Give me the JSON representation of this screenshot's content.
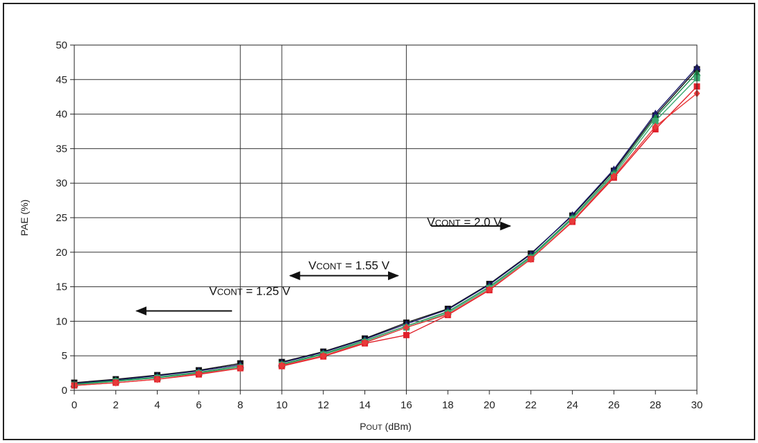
{
  "chart_data": {
    "type": "line",
    "xlabel_main": "P",
    "xlabel_sub": "OUT",
    "xlabel_unit": " (dBm)",
    "ylabel": "PAE (%)",
    "xlim": [
      0,
      30
    ],
    "ylim": [
      0,
      50
    ],
    "x_ticks": [
      "0",
      "2",
      "4",
      "6",
      "8",
      "10",
      "12",
      "14",
      "16",
      "18",
      "20",
      "22",
      "24",
      "26",
      "28",
      "30"
    ],
    "y_ticks": [
      "0",
      "5",
      "10",
      "15",
      "20",
      "25",
      "30",
      "35",
      "40",
      "45",
      "50"
    ],
    "grid": "horizontal",
    "region_dividers_x": [
      8,
      10,
      16
    ],
    "annotations": [
      {
        "main": "V",
        "sub": "CONT",
        "value": " = 1.25 V",
        "arrow": "left",
        "x": 6.5,
        "y": 13.8
      },
      {
        "main": "V",
        "sub": "CONT",
        "value": " = 1.55 V",
        "arrow": "both",
        "x": 13,
        "y": 17.5
      },
      {
        "main": "V",
        "sub": "CONT",
        "value": " = 2.0 V",
        "arrow": "right",
        "x": 17,
        "y": 23.8
      }
    ],
    "series": [
      {
        "color": "#111111",
        "marker": "square",
        "segments": [
          {
            "x": [
              0,
              2,
              4,
              6,
              8
            ],
            "y": [
              1.1,
              1.6,
              2.2,
              2.9,
              3.9
            ]
          },
          {
            "x": [
              10,
              12,
              14,
              16,
              18,
              20,
              22,
              24,
              26,
              28,
              30
            ],
            "y": [
              4.1,
              5.6,
              7.5,
              9.8,
              11.8,
              15.4,
              19.8,
              25.3,
              31.8,
              39.8,
              46.5
            ]
          }
        ]
      },
      {
        "color": "#1a1a6b",
        "marker": "triangle",
        "segments": [
          {
            "x": [
              0,
              2,
              4,
              6,
              8
            ],
            "y": [
              1.0,
              1.5,
              2.1,
              2.8,
              3.7
            ]
          },
          {
            "x": [
              10,
              12,
              14,
              16,
              18,
              20,
              22,
              24,
              26,
              28,
              30
            ],
            "y": [
              4.0,
              5.5,
              7.4,
              9.6,
              11.7,
              15.3,
              19.7,
              25.4,
              32.0,
              40.1,
              46.8
            ]
          }
        ]
      },
      {
        "color": "#1a8a4a",
        "marker": "triangle",
        "segments": [
          {
            "x": [
              0,
              2,
              4,
              6,
              8
            ],
            "y": [
              0.9,
              1.4,
              1.9,
              2.6,
              3.5
            ]
          },
          {
            "x": [
              10,
              12,
              14,
              16,
              18,
              20,
              22,
              24,
              26,
              28,
              30
            ],
            "y": [
              3.8,
              5.3,
              7.2,
              9.3,
              11.4,
              15.0,
              19.4,
              25.0,
              31.5,
              39.5,
              46.0
            ]
          }
        ]
      },
      {
        "color": "#3aa870",
        "marker": "square",
        "segments": [
          {
            "x": [
              0,
              2,
              4,
              6,
              8
            ],
            "y": [
              0.8,
              1.3,
              1.8,
              2.5,
              3.3
            ]
          },
          {
            "x": [
              10,
              12,
              14,
              16,
              18,
              20,
              22,
              24,
              26,
              28,
              30
            ],
            "y": [
              3.7,
              5.2,
              7.0,
              9.1,
              11.2,
              14.8,
              19.2,
              24.8,
              31.2,
              39.0,
              45.2
            ]
          }
        ]
      },
      {
        "color": "#e0202a",
        "marker": "square",
        "segments": [
          {
            "x": [
              0,
              2,
              4,
              6,
              8
            ],
            "y": [
              0.7,
              1.1,
              1.6,
              2.3,
              3.2
            ]
          },
          {
            "x": [
              10,
              12,
              14,
              16,
              18,
              20,
              22,
              24,
              26,
              28,
              30
            ],
            "y": [
              3.5,
              4.9,
              6.8,
              8.0,
              10.9,
              14.5,
              19.0,
              24.4,
              30.8,
              37.8,
              44.0
            ]
          }
        ]
      },
      {
        "color": "#e83a3a",
        "marker": "diamond",
        "segments": [
          {
            "x": [
              0,
              2,
              4,
              6,
              8
            ],
            "y": [
              0.7,
              1.1,
              1.6,
              2.4,
              3.2
            ]
          },
          {
            "x": [
              10,
              12,
              14,
              16,
              18,
              20,
              22,
              24,
              26,
              28,
              30
            ],
            "y": [
              3.6,
              5.0,
              6.9,
              9.1,
              11.0,
              14.6,
              19.0,
              24.5,
              31.0,
              38.2,
              43.0
            ]
          }
        ]
      }
    ]
  }
}
